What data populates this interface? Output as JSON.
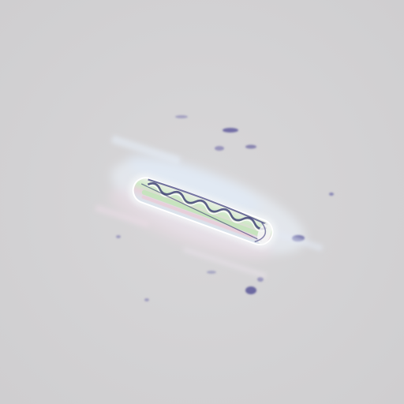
{
  "image": {
    "subject": "",
    "background_color": "#d3d2d4",
    "accent_colors": [
      "#3d3a8a",
      "#c6e8c0",
      "#e9c9d2",
      "#b8cce6"
    ]
  }
}
